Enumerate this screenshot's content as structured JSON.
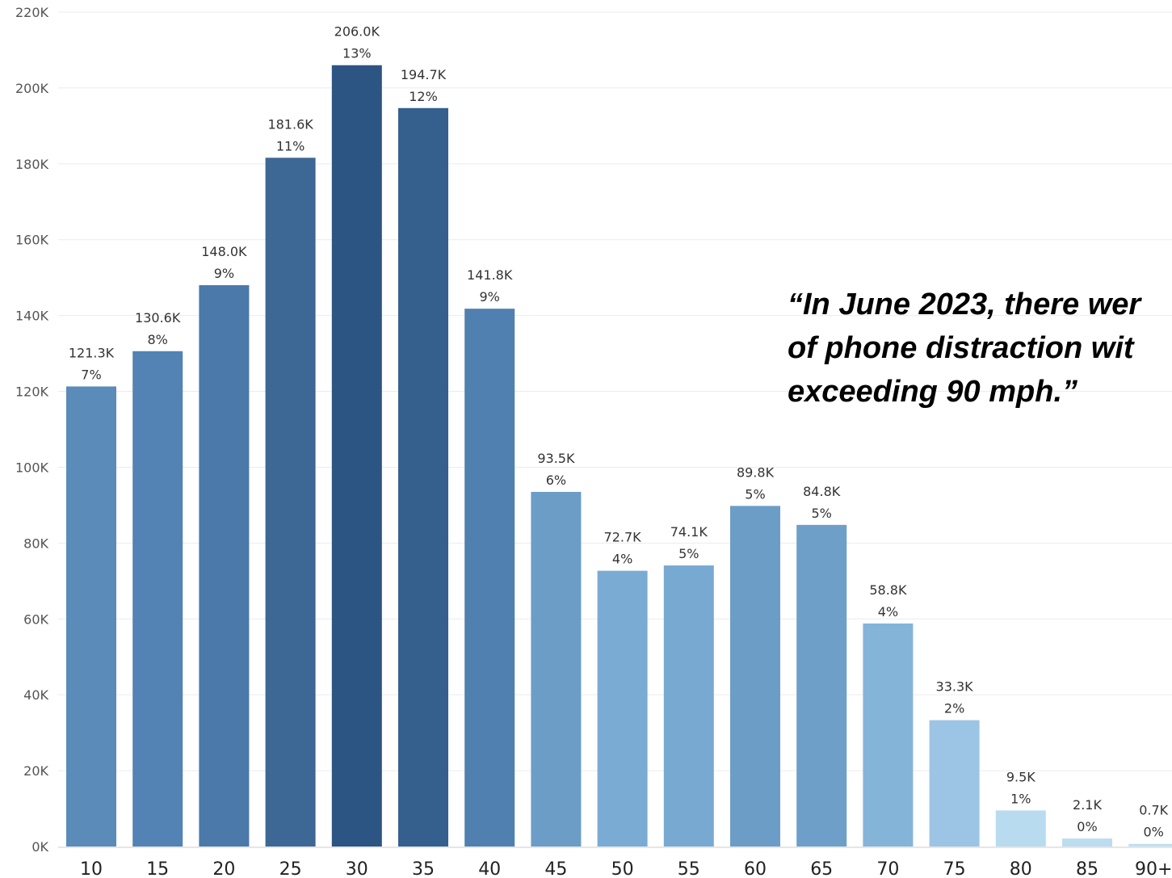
{
  "chart_data": {
    "type": "bar",
    "title": "",
    "xlabel": "",
    "ylabel": "",
    "categories": [
      "10",
      "15",
      "20",
      "25",
      "30",
      "35",
      "40",
      "45",
      "50",
      "55",
      "60",
      "65",
      "70",
      "75",
      "80",
      "85",
      "90+"
    ],
    "values": [
      121.3,
      130.6,
      148.0,
      181.6,
      206.0,
      194.7,
      141.8,
      93.5,
      72.7,
      74.1,
      89.8,
      84.8,
      58.8,
      33.3,
      9.5,
      2.1,
      0.7
    ],
    "value_labels": [
      "121.3K",
      "130.6K",
      "148.0K",
      "181.6K",
      "206.0K",
      "194.7K",
      "141.8K",
      "93.5K",
      "72.7K",
      "74.1K",
      "89.8K",
      "84.8K",
      "58.8K",
      "33.3K",
      "9.5K",
      "2.1K",
      "0.7K"
    ],
    "percent_labels": [
      "7%",
      "8%",
      "9%",
      "11%",
      "13%",
      "12%",
      "9%",
      "6%",
      "4%",
      "5%",
      "5%",
      "5%",
      "4%",
      "2%",
      "1%",
      "0%",
      "0%"
    ],
    "bar_colors": [
      "#5b8bb8",
      "#5283b4",
      "#4a79aa",
      "#3d6895",
      "#2c5584",
      "#35608d",
      "#5080af",
      "#6b9dc7",
      "#7aabd3",
      "#78a9d1",
      "#6b9dc7",
      "#6e9fc8",
      "#85b4d9",
      "#9cc4e4",
      "#b8dbf0",
      "#bcdcf0",
      "#c0dff2"
    ],
    "y_ticks": [
      "0K",
      "20K",
      "40K",
      "60K",
      "80K",
      "100K",
      "120K",
      "140K",
      "160K",
      "180K",
      "200K",
      "220K"
    ],
    "ylim": [
      0,
      220
    ],
    "grid": true,
    "legend": "none"
  },
  "annotation": {
    "quote": "“In June 2023, there wer\nof phone distraction wit\nexceeding 90 mph.”"
  },
  "colors": {
    "grid": "#ececec",
    "axis_text": "#555555",
    "label_text": "#333333",
    "category_text": "#222222"
  }
}
